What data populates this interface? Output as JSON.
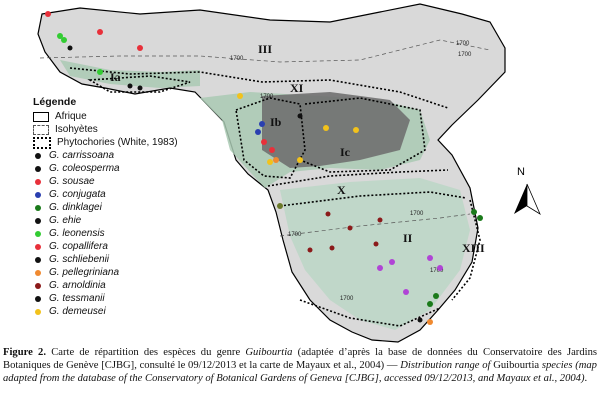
{
  "map": {
    "regions": [
      "III",
      "Ia",
      "XI",
      "Ib",
      "Ic",
      "X",
      "II",
      "XIII"
    ],
    "isohyets": [
      "1700",
      "1700",
      "1700",
      "1700",
      "1700",
      "1700",
      "1700",
      "1700"
    ],
    "north_label": "N"
  },
  "legend": {
    "title": "Légende",
    "keys": [
      {
        "label": "Afrique"
      },
      {
        "label": "Isohyètes"
      },
      {
        "label": "Phytochories (White, 1983)"
      }
    ],
    "species": [
      {
        "name": "G. carrissoana",
        "color": "#111111"
      },
      {
        "name": "G. coleosperma",
        "color": "#111111"
      },
      {
        "name": "G. sousae",
        "color": "#e8303a"
      },
      {
        "name": "G. conjugata",
        "color": "#2a3fb0"
      },
      {
        "name": "G. dinklagei",
        "color": "#1a7a1a"
      },
      {
        "name": "G. ehie",
        "color": "#111111"
      },
      {
        "name": "G. leonensis",
        "color": "#33cc33"
      },
      {
        "name": "G. copallifera",
        "color": "#e8303a"
      },
      {
        "name": "G. schliebenii",
        "color": "#111111"
      },
      {
        "name": "G. pellegriniana",
        "color": "#f08a30"
      },
      {
        "name": "G. arnoldinia",
        "color": "#8b1a1a"
      },
      {
        "name": "G. tessmanii",
        "color": "#111111"
      },
      {
        "name": "G. demeusei",
        "color": "#f2c21b"
      }
    ]
  },
  "caption": {
    "label": "Figure 2.",
    "fr_1": " Carte de répartition des espèces du genre ",
    "genus": "Guibourtia",
    "fr_2": " (adaptée d’après la base de données du Conservatoire des Jardins Botaniques de Genève [CJBG], consulté le 09/12/2013 et la carte de Mayaux et al., 2004) — ",
    "en_1": "Distribution range of",
    "genus_en": " Guibourtia ",
    "en_2": "species (map adapted from the database of the Conservatory of Botanical Gardens of Geneva [CJBG], accessed 09/12/2013, and Mayaux et al., 2004)",
    "end": "."
  }
}
